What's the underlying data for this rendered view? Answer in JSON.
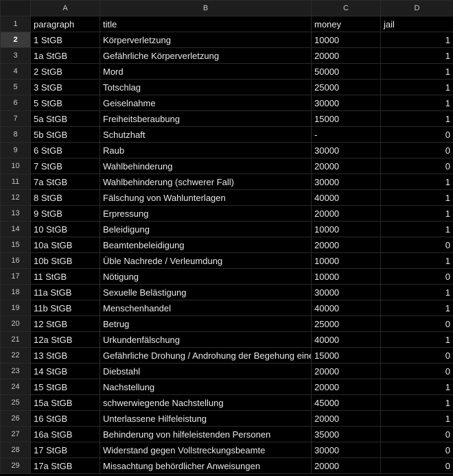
{
  "column_headers": [
    "A",
    "B",
    "C",
    "D"
  ],
  "header_row": {
    "row_number": "1",
    "paragraph": "paragraph",
    "title": "title",
    "money": "money",
    "jail": "jail"
  },
  "selected_row": "2",
  "rows": [
    {
      "n": "2",
      "paragraph": "1 StGB",
      "title": "Körperverletzung",
      "money": "10000",
      "jail": "1"
    },
    {
      "n": "3",
      "paragraph": "1a StGB",
      "title": "Gefährliche Körperverletzung",
      "money": "20000",
      "jail": "1"
    },
    {
      "n": "4",
      "paragraph": "2 StGB",
      "title": "Mord",
      "money": "50000",
      "jail": "1"
    },
    {
      "n": "5",
      "paragraph": "3 StGB",
      "title": "Totschlag",
      "money": "25000",
      "jail": "1"
    },
    {
      "n": "6",
      "paragraph": "5 StGB",
      "title": "Geiselnahme",
      "money": "30000",
      "jail": "1"
    },
    {
      "n": "7",
      "paragraph": "5a StGB",
      "title": "Freiheitsberaubung",
      "money": "15000",
      "jail": "1"
    },
    {
      "n": "8",
      "paragraph": "5b StGB",
      "title": "Schutzhaft",
      "money": "-",
      "jail": "0"
    },
    {
      "n": "9",
      "paragraph": "6 StGB",
      "title": "Raub",
      "money": "30000",
      "jail": "0"
    },
    {
      "n": "10",
      "paragraph": "7 StGB",
      "title": "Wahlbehinderung",
      "money": "20000",
      "jail": "0"
    },
    {
      "n": "11",
      "paragraph": "7a StGB",
      "title": "Wahlbehinderung (schwerer Fall)",
      "money": "30000",
      "jail": "1"
    },
    {
      "n": "12",
      "paragraph": "8 StGB",
      "title": "Fälschung von Wahlunterlagen",
      "money": "40000",
      "jail": "1"
    },
    {
      "n": "13",
      "paragraph": "9 StGB",
      "title": "Erpressung",
      "money": "20000",
      "jail": "1"
    },
    {
      "n": "14",
      "paragraph": "10 StGB",
      "title": "Beleidigung",
      "money": "10000",
      "jail": "1"
    },
    {
      "n": "15",
      "paragraph": "10a StGB",
      "title": "Beamtenbeleidigung",
      "money": "20000",
      "jail": "0"
    },
    {
      "n": "16",
      "paragraph": "10b StGB",
      "title": "Üble Nachrede / Verleumdung",
      "money": "10000",
      "jail": "1"
    },
    {
      "n": "17",
      "paragraph": "11 StGB",
      "title": "Nötigung",
      "money": "10000",
      "jail": "0"
    },
    {
      "n": "18",
      "paragraph": "11a StGB",
      "title": "Sexuelle Belästigung",
      "money": "30000",
      "jail": "1"
    },
    {
      "n": "19",
      "paragraph": "11b StGB",
      "title": "Menschenhandel",
      "money": "40000",
      "jail": "1"
    },
    {
      "n": "20",
      "paragraph": "12 StGB",
      "title": "Betrug",
      "money": "25000",
      "jail": "0"
    },
    {
      "n": "21",
      "paragraph": "12a StGB",
      "title": "Urkundenfälschung",
      "money": "40000",
      "jail": "1"
    },
    {
      "n": "22",
      "paragraph": "13 StGB",
      "title": "Gefährliche Drohung / Androhung der Begehung eine",
      "money": "15000",
      "jail": "0"
    },
    {
      "n": "23",
      "paragraph": "14 StGB",
      "title": "Diebstahl",
      "money": "20000",
      "jail": "0"
    },
    {
      "n": "24",
      "paragraph": "15 StGB",
      "title": "Nachstellung",
      "money": "20000",
      "jail": "1"
    },
    {
      "n": "25",
      "paragraph": "15a StGB",
      "title": "schwerwiegende Nachstellung",
      "money": "45000",
      "jail": "1"
    },
    {
      "n": "26",
      "paragraph": "16 StGB",
      "title": "Unterlassene Hilfeleistung",
      "money": "20000",
      "jail": "1"
    },
    {
      "n": "27",
      "paragraph": "16a StGB",
      "title": "Behinderung von hilfeleistenden Personen",
      "money": "35000",
      "jail": "0"
    },
    {
      "n": "28",
      "paragraph": "17 StGB",
      "title": "Widerstand gegen Vollstreckungsbeamte",
      "money": "30000",
      "jail": "0"
    },
    {
      "n": "29",
      "paragraph": "17a StGB",
      "title": "Missachtung behördlicher Anweisungen",
      "money": "20000",
      "jail": "0"
    }
  ]
}
